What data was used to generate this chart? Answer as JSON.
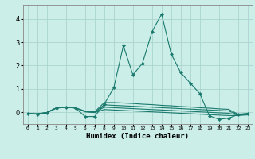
{
  "xlabel": "Humidex (Indice chaleur)",
  "background_color": "#cceee8",
  "grid_color": "#aad4ce",
  "line_color": "#1a7a6e",
  "x_values": [
    0,
    1,
    2,
    3,
    4,
    5,
    6,
    7,
    8,
    9,
    10,
    11,
    12,
    13,
    14,
    15,
    16,
    17,
    18,
    19,
    20,
    21,
    22,
    23
  ],
  "series": [
    [
      -0.05,
      -0.08,
      -0.02,
      0.18,
      0.22,
      0.18,
      -0.18,
      -0.18,
      0.35,
      1.05,
      2.85,
      1.6,
      2.1,
      3.45,
      4.2,
      2.5,
      1.7,
      1.25,
      0.8,
      -0.15,
      -0.3,
      -0.25,
      -0.1,
      -0.05
    ],
    [
      -0.05,
      -0.07,
      -0.01,
      0.19,
      0.23,
      0.19,
      0.05,
      0.02,
      0.42,
      0.42,
      0.4,
      0.38,
      0.35,
      0.33,
      0.3,
      0.28,
      0.25,
      0.23,
      0.2,
      0.18,
      0.15,
      0.13,
      -0.08,
      -0.05
    ],
    [
      -0.05,
      -0.07,
      -0.01,
      0.19,
      0.23,
      0.19,
      0.04,
      0.01,
      0.32,
      0.3,
      0.28,
      0.26,
      0.24,
      0.22,
      0.2,
      0.18,
      0.16,
      0.14,
      0.12,
      0.1,
      0.08,
      0.06,
      -0.1,
      -0.07
    ],
    [
      -0.05,
      -0.07,
      -0.01,
      0.19,
      0.23,
      0.19,
      0.03,
      0.0,
      0.22,
      0.2,
      0.18,
      0.16,
      0.14,
      0.12,
      0.1,
      0.08,
      0.06,
      0.04,
      0.02,
      0.0,
      -0.02,
      -0.04,
      -0.12,
      -0.09
    ],
    [
      -0.05,
      -0.07,
      -0.01,
      0.19,
      0.23,
      0.19,
      0.02,
      -0.01,
      0.12,
      0.1,
      0.08,
      0.06,
      0.04,
      0.02,
      0.0,
      -0.02,
      -0.04,
      -0.06,
      -0.08,
      -0.1,
      -0.12,
      -0.14,
      -0.14,
      -0.11
    ]
  ],
  "ylim": [
    -0.5,
    4.6
  ],
  "xlim": [
    -0.5,
    23.5
  ],
  "yticks": [
    0,
    1,
    2,
    3,
    4
  ],
  "xtick_labels": [
    "0",
    "1",
    "2",
    "3",
    "4",
    "5",
    "6",
    "7",
    "8",
    "9",
    "10",
    "11",
    "12",
    "13",
    "14",
    "15",
    "16",
    "17",
    "18",
    "19",
    "20",
    "21",
    "22",
    "23"
  ],
  "marker": "D",
  "markersize": 2.0,
  "linewidth": 0.8
}
